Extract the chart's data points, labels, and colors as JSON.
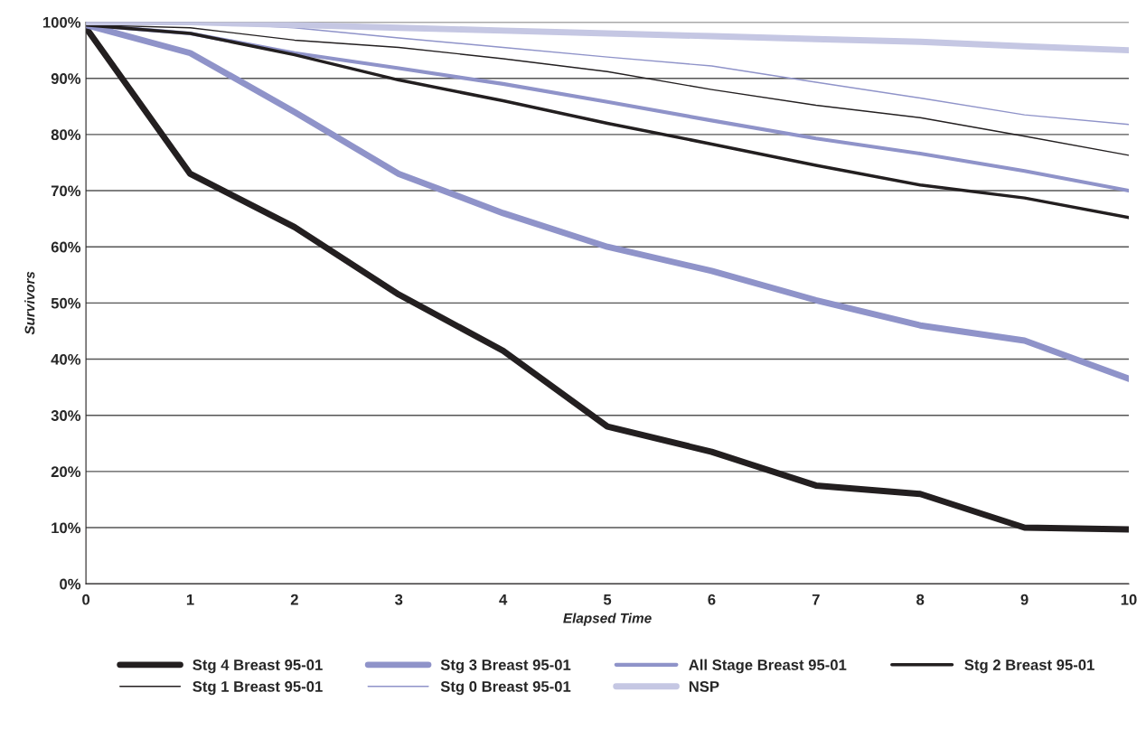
{
  "chart_data": {
    "type": "line",
    "xlabel": "Elapsed Time",
    "ylabel": "Survivors",
    "x": [
      0,
      1,
      2,
      3,
      4,
      5,
      6,
      7,
      8,
      9,
      10
    ],
    "series": [
      {
        "name": "Stg 4 Breast 95-01",
        "color": "#231f20",
        "values": [
          99,
          73,
          63.5,
          51.5,
          41.5,
          28,
          23.5,
          17.5,
          16,
          10,
          9.7
        ]
      },
      {
        "name": "Stg 3 Breast 95-01",
        "color": "#8f93c9",
        "values": [
          99.5,
          94.5,
          84,
          73,
          66,
          60,
          55.7,
          50.5,
          46,
          43.3,
          36.5
        ]
      },
      {
        "name": "All Stage Breast 95-01",
        "color": "#8f93c9",
        "values": [
          99.5,
          98,
          94.5,
          91.8,
          89,
          85.8,
          82.5,
          79.3,
          76.6,
          73.5,
          70
        ]
      },
      {
        "name": "Stg 2 Breast 95-01",
        "color": "#231f20",
        "values": [
          99.5,
          98,
          94.2,
          89.7,
          86,
          82,
          78.3,
          74.5,
          71,
          68.7,
          65.2
        ]
      },
      {
        "name": "Stg 1 Breast 95-01",
        "color": "#231f20",
        "values": [
          99.5,
          99,
          96.8,
          95.5,
          93.5,
          91.2,
          88,
          85.2,
          83,
          79.7,
          76.3
        ]
      },
      {
        "name": "Stg 0 Breast 95-01",
        "color": "#8f93c9",
        "values": [
          100,
          100,
          99,
          97.2,
          95.5,
          93.8,
          92.2,
          89.3,
          86.5,
          83.5,
          81.8
        ]
      },
      {
        "name": "NSP",
        "color": "#c5c7e3",
        "values": [
          100,
          100,
          99.5,
          99,
          98.5,
          98,
          97.5,
          97,
          96.5,
          95.7,
          95
        ]
      }
    ],
    "xlim": [
      0,
      10
    ],
    "xticks": [
      0,
      1,
      2,
      3,
      4,
      5,
      6,
      7,
      8,
      9,
      10
    ],
    "ylim": [
      0,
      100
    ],
    "yticks": [
      {
        "value": 0,
        "label": "0%"
      },
      {
        "value": 10,
        "label": "10%"
      },
      {
        "value": 20,
        "label": "20%"
      },
      {
        "value": 30,
        "label": "30%"
      },
      {
        "value": 40,
        "label": "40%"
      },
      {
        "value": 50,
        "label": "50%"
      },
      {
        "value": 60,
        "label": "60%"
      },
      {
        "value": 70,
        "label": "70%"
      },
      {
        "value": 80,
        "label": "80%"
      },
      {
        "value": 90,
        "label": "90%"
      },
      {
        "value": 100,
        "label": "100%"
      }
    ],
    "grid": "y",
    "legend": "bottom",
    "line_style": "solid"
  }
}
